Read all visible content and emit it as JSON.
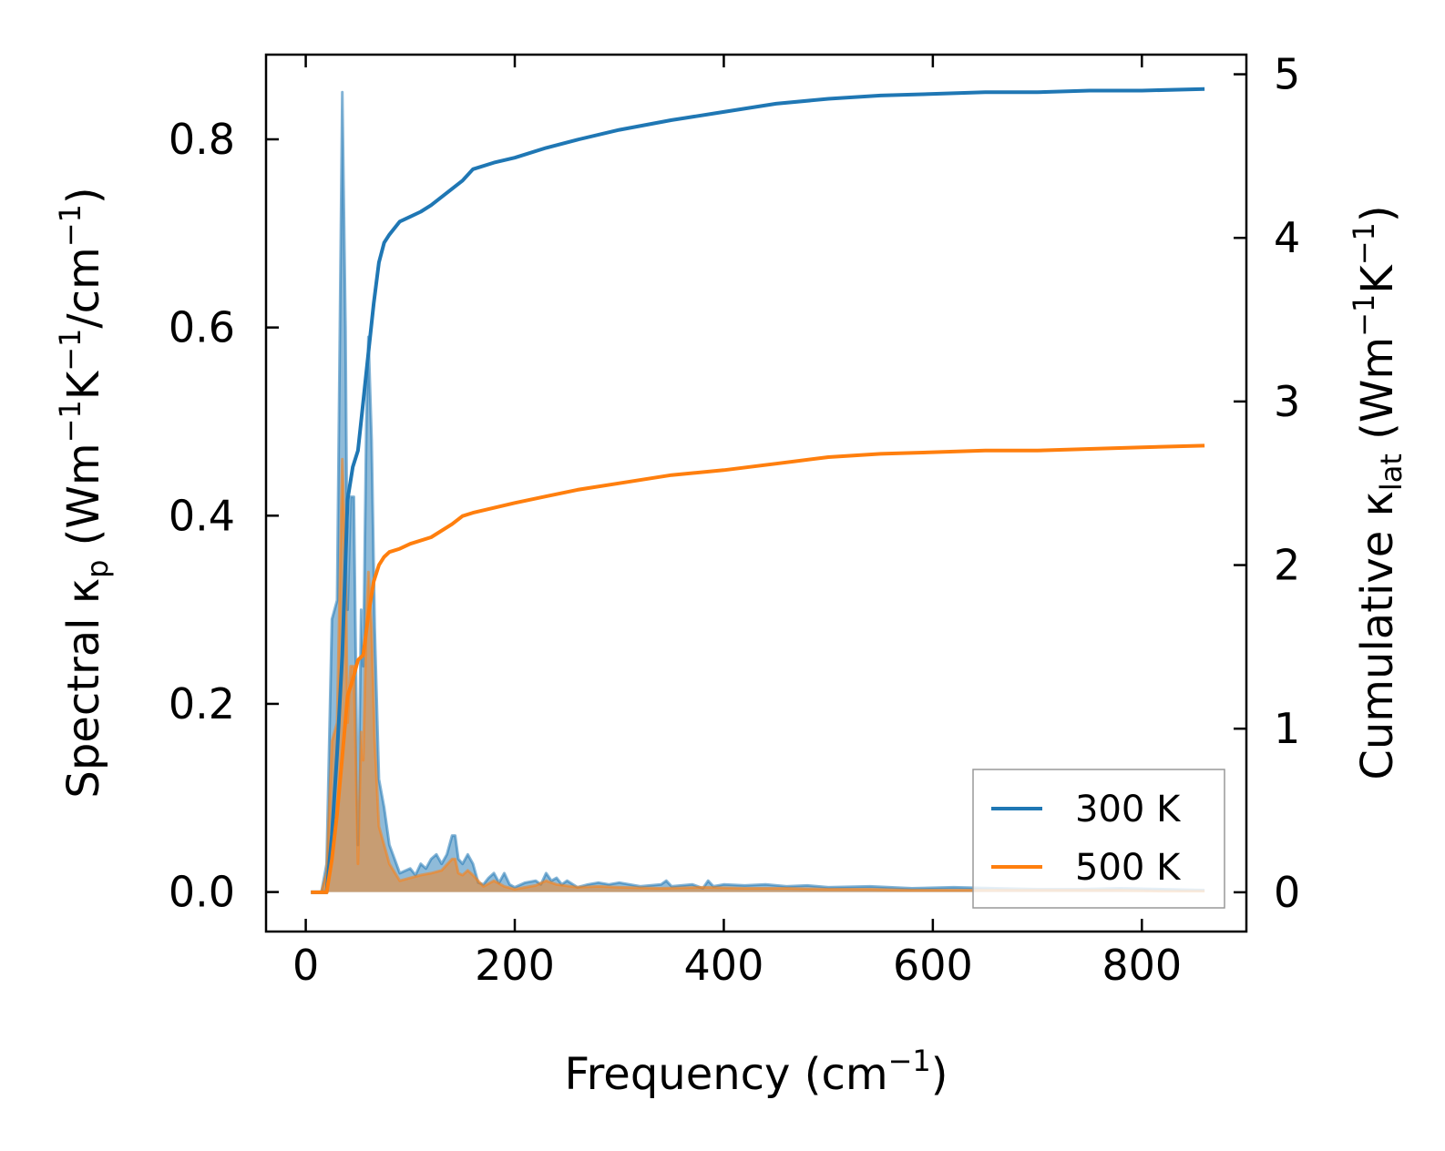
{
  "chart_data": {
    "type": "area",
    "xlabel": {
      "text": "Frequency (cm",
      "sup": "−1",
      "end": ")"
    },
    "ylabel_left": {
      "parts": [
        "Spectral κ",
        "p",
        " (Wm",
        "−1",
        "K",
        "−1",
        "/cm",
        "−1",
        ")"
      ]
    },
    "ylabel_right": {
      "parts": [
        "Cumulative κ",
        "lat",
        " (Wm",
        "−1",
        "K",
        "−1",
        ")"
      ]
    },
    "xlim": [
      -38,
      900
    ],
    "ylim_left": [
      -0.042,
      0.89
    ],
    "ylim_right": [
      -0.24,
      5.12
    ],
    "xticks": [
      0,
      200,
      400,
      600,
      800
    ],
    "xtick_labels": [
      "0",
      "200",
      "400",
      "600",
      "800"
    ],
    "yticks_left": [
      0.0,
      0.2,
      0.4,
      0.6,
      0.8
    ],
    "ytick_labels_left": [
      "0.0",
      "0.2",
      "0.4",
      "0.6",
      "0.8"
    ],
    "yticks_right": [
      0,
      1,
      2,
      3,
      4,
      5
    ],
    "ytick_labels_right": [
      "0",
      "1",
      "2",
      "3",
      "4",
      "5"
    ],
    "legend": {
      "position": "lower-right",
      "entries": [
        "300 K",
        "500 K"
      ]
    },
    "series": [
      {
        "name": "300 K",
        "color": "#1f77b4",
        "spectral": {
          "x": [
            5,
            15,
            20,
            25,
            30,
            35,
            38,
            40,
            43,
            46,
            50,
            53,
            55,
            58,
            60,
            63,
            66,
            70,
            75,
            80,
            90,
            100,
            105,
            110,
            115,
            120,
            125,
            130,
            135,
            140,
            143,
            146,
            150,
            155,
            160,
            165,
            170,
            175,
            180,
            185,
            190,
            195,
            200,
            210,
            220,
            225,
            230,
            235,
            240,
            245,
            250,
            260,
            270,
            280,
            290,
            300,
            320,
            340,
            345,
            350,
            370,
            380,
            385,
            390,
            400,
            420,
            440,
            460,
            480,
            500,
            540,
            580,
            620,
            660,
            700,
            740,
            780,
            820,
            860
          ],
          "y": [
            0.0,
            0.0,
            0.03,
            0.29,
            0.31,
            0.85,
            0.6,
            0.3,
            0.42,
            0.42,
            0.05,
            0.3,
            0.24,
            0.5,
            0.59,
            0.48,
            0.28,
            0.12,
            0.09,
            0.05,
            0.02,
            0.025,
            0.018,
            0.03,
            0.025,
            0.035,
            0.04,
            0.03,
            0.04,
            0.06,
            0.06,
            0.035,
            0.03,
            0.04,
            0.03,
            0.01,
            0.008,
            0.015,
            0.02,
            0.01,
            0.02,
            0.008,
            0.005,
            0.01,
            0.012,
            0.008,
            0.02,
            0.012,
            0.015,
            0.008,
            0.012,
            0.005,
            0.008,
            0.01,
            0.008,
            0.01,
            0.006,
            0.008,
            0.012,
            0.006,
            0.008,
            0.004,
            0.012,
            0.006,
            0.008,
            0.007,
            0.008,
            0.006,
            0.007,
            0.005,
            0.006,
            0.004,
            0.005,
            0.004,
            0.003,
            0.003,
            0.004,
            0.003,
            0.002
          ]
        },
        "cumulative": {
          "x": [
            5,
            20,
            25,
            30,
            35,
            40,
            45,
            50,
            55,
            60,
            65,
            70,
            75,
            80,
            90,
            100,
            110,
            120,
            130,
            140,
            150,
            160,
            180,
            200,
            230,
            260,
            300,
            350,
            400,
            450,
            500,
            550,
            600,
            650,
            700,
            750,
            800,
            860
          ],
          "y": [
            0,
            0,
            0.35,
            0.85,
            1.45,
            2.4,
            2.6,
            2.7,
            3.0,
            3.3,
            3.6,
            3.85,
            3.97,
            4.02,
            4.1,
            4.13,
            4.16,
            4.2,
            4.25,
            4.3,
            4.35,
            4.42,
            4.46,
            4.49,
            4.55,
            4.6,
            4.66,
            4.72,
            4.77,
            4.82,
            4.85,
            4.87,
            4.88,
            4.89,
            4.89,
            4.9,
            4.9,
            4.91
          ]
        }
      },
      {
        "name": "500 K",
        "color": "#ff7f0e",
        "spectral": {
          "x": [
            5,
            15,
            20,
            25,
            30,
            35,
            38,
            40,
            43,
            46,
            50,
            53,
            55,
            58,
            60,
            63,
            66,
            70,
            75,
            80,
            90,
            100,
            110,
            120,
            130,
            140,
            143,
            146,
            150,
            155,
            160,
            170,
            180,
            190,
            200,
            220,
            230,
            240,
            260,
            280,
            300,
            340,
            380,
            420,
            460,
            500,
            540,
            580,
            620,
            660,
            700,
            740,
            780,
            820,
            860
          ],
          "y": [
            0.0,
            0.0,
            0.02,
            0.16,
            0.18,
            0.46,
            0.35,
            0.18,
            0.24,
            0.24,
            0.03,
            0.17,
            0.14,
            0.29,
            0.34,
            0.28,
            0.16,
            0.07,
            0.05,
            0.03,
            0.012,
            0.015,
            0.018,
            0.02,
            0.023,
            0.035,
            0.035,
            0.02,
            0.018,
            0.023,
            0.018,
            0.006,
            0.012,
            0.006,
            0.003,
            0.007,
            0.012,
            0.008,
            0.005,
            0.006,
            0.005,
            0.004,
            0.005,
            0.004,
            0.004,
            0.003,
            0.003,
            0.002,
            0.002,
            0.002,
            0.002,
            0.002,
            0.002,
            0.001,
            0.001
          ]
        },
        "cumulative": {
          "x": [
            5,
            20,
            25,
            30,
            35,
            40,
            45,
            50,
            55,
            60,
            65,
            70,
            75,
            80,
            90,
            100,
            120,
            140,
            150,
            160,
            180,
            200,
            230,
            260,
            300,
            350,
            400,
            450,
            500,
            550,
            600,
            650,
            700,
            750,
            800,
            860
          ],
          "y": [
            0,
            0,
            0.2,
            0.48,
            0.83,
            1.2,
            1.3,
            1.42,
            1.45,
            1.7,
            1.9,
            2.0,
            2.05,
            2.08,
            2.1,
            2.13,
            2.17,
            2.25,
            2.3,
            2.32,
            2.35,
            2.38,
            2.42,
            2.46,
            2.5,
            2.55,
            2.58,
            2.62,
            2.66,
            2.68,
            2.69,
            2.7,
            2.7,
            2.71,
            2.72,
            2.73
          ]
        }
      }
    ]
  }
}
